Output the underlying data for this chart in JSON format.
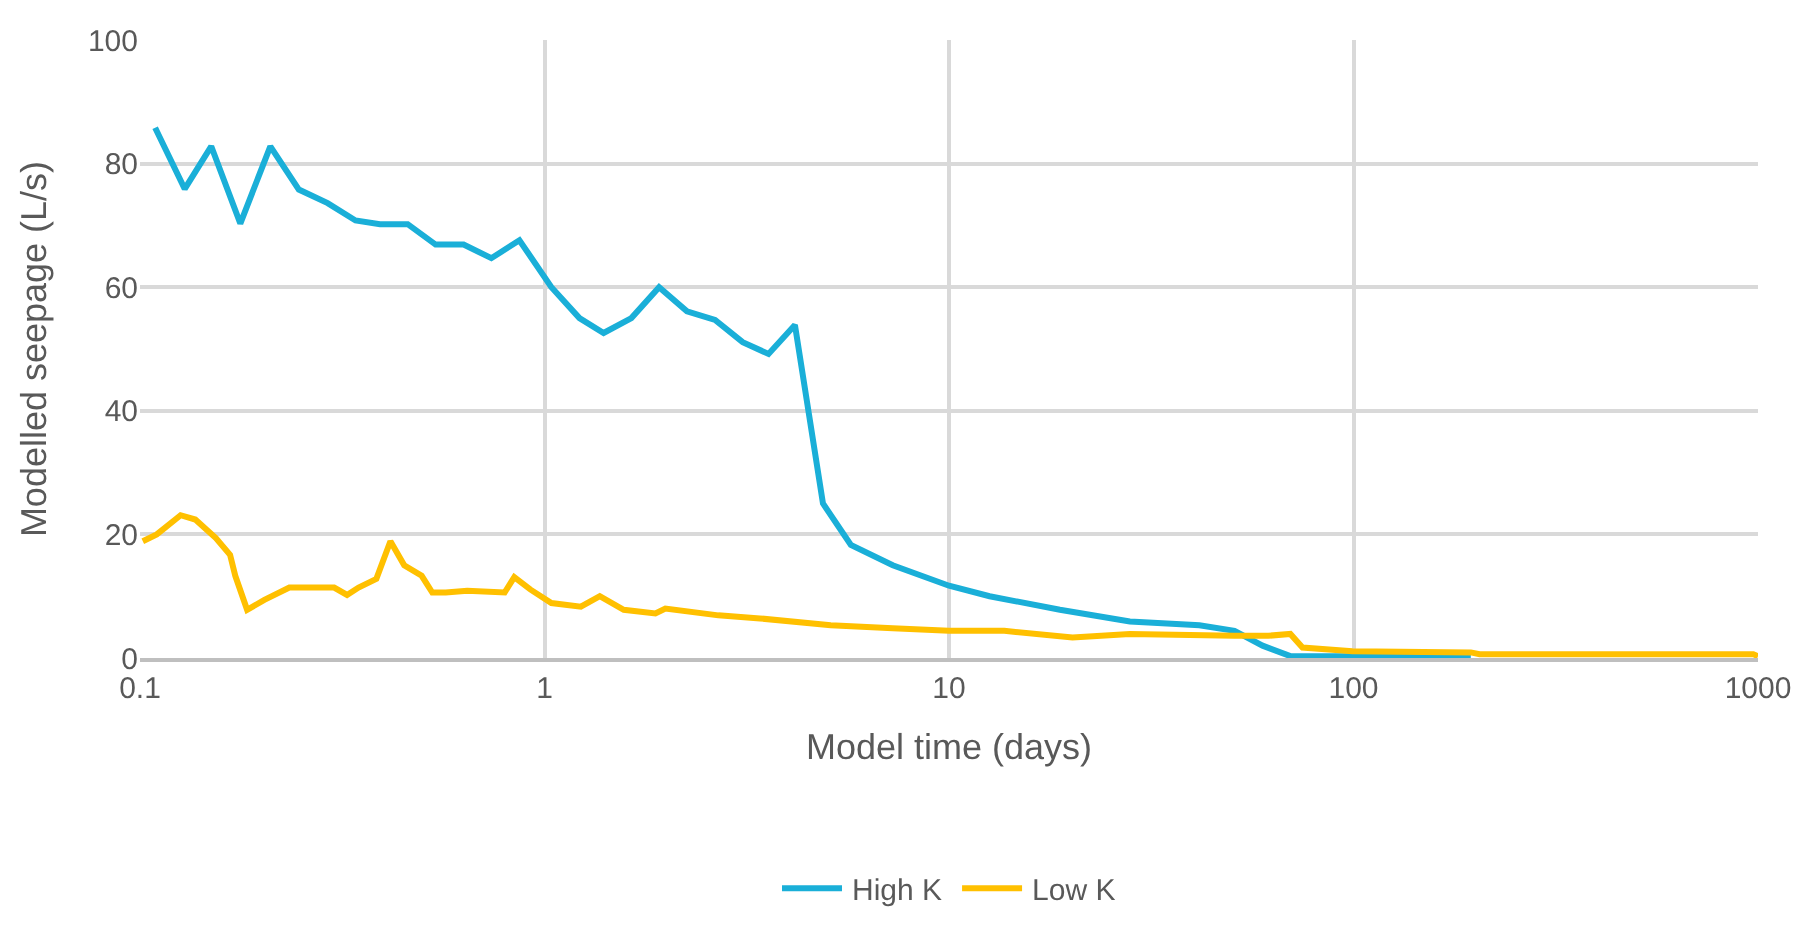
{
  "chart_data": {
    "type": "line",
    "xlabel": "Model time (days)",
    "ylabel": "Modelled seepage (L/s)",
    "log": "x",
    "grid": true,
    "legend": "bottom",
    "line_style": "solid",
    "marker": "none",
    "xlim": [
      0.1,
      1000
    ],
    "xticks": [
      0.1,
      1,
      10,
      100,
      1000
    ],
    "ylim": [
      0,
      100
    ],
    "yticks": [
      0,
      20,
      40,
      60,
      80,
      100
    ],
    "series": [
      {
        "name": "High K",
        "color": "#1aafd8",
        "x": [
          0.109,
          0.129,
          0.15,
          0.177,
          0.21,
          0.247,
          0.291,
          0.341,
          0.392,
          0.459,
          0.538,
          0.631,
          0.739,
          0.867,
          1.04,
          1.22,
          1.4,
          1.64,
          1.92,
          2.25,
          2.64,
          3.09,
          3.58,
          4.16,
          4.88,
          5.72,
          7.26,
          10,
          12.6,
          18.8,
          28,
          41.6,
          50.8,
          59.6,
          69.8,
          195
        ],
        "values": [
          85.8,
          75.9,
          82.8,
          70.3,
          82.8,
          75.8,
          73.6,
          70.8,
          70.2,
          70.2,
          66.9,
          66.9,
          64.7,
          67.6,
          60,
          55,
          52.6,
          55,
          60,
          56.1,
          54.7,
          51.1,
          49.2,
          53.9,
          25,
          18.3,
          15,
          11.7,
          10,
          7.8,
          5.9,
          5.3,
          4.4,
          2,
          0.3,
          0.3
        ]
      },
      {
        "name": "Low K",
        "color": "#ffc000",
        "x": [
          0.1016,
          0.11,
          0.126,
          0.137,
          0.154,
          0.167,
          0.172,
          0.184,
          0.203,
          0.234,
          0.302,
          0.325,
          0.347,
          0.384,
          0.416,
          0.45,
          0.497,
          0.528,
          0.57,
          0.644,
          0.797,
          0.842,
          0.922,
          1.04,
          1.23,
          1.37,
          1.57,
          1.88,
          1.99,
          2.69,
          3.41,
          5.1,
          7.26,
          10,
          13.7,
          20.2,
          28,
          50.8,
          61.6,
          69.8,
          74.8,
          99.4,
          195,
          205,
          974,
          1000
        ],
        "values": [
          18.9,
          20,
          23.1,
          22.4,
          19.4,
          16.7,
          13.3,
          7.8,
          9.4,
          11.4,
          11.4,
          10.2,
          11.4,
          12.8,
          18.9,
          15,
          13.3,
          10.6,
          10.6,
          10.9,
          10.6,
          13.1,
          11.1,
          8.9,
          8.3,
          10,
          7.8,
          7.2,
          8,
          6.9,
          6.4,
          5.3,
          4.8,
          4.4,
          4.4,
          3.3,
          3.9,
          3.6,
          3.6,
          3.9,
          1.7,
          1.1,
          0.9,
          0.6,
          0.6,
          0.3
        ]
      }
    ]
  }
}
